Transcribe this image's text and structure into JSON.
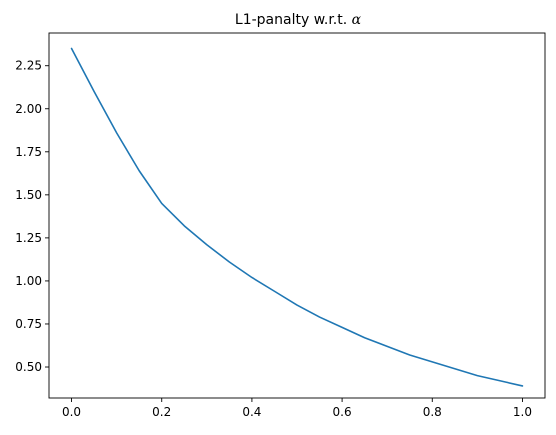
{
  "chart_data": {
    "type": "line",
    "title": "L1-panalty w.r.t. ",
    "title_symbol": "α",
    "xlabel": "",
    "ylabel": "",
    "xlim": [
      -0.05,
      1.05
    ],
    "ylim": [
      0.32,
      2.44
    ],
    "x_ticks": [
      0.0,
      0.2,
      0.4,
      0.6,
      0.8,
      1.0
    ],
    "x_tick_labels": [
      "0.0",
      "0.2",
      "0.4",
      "0.6",
      "0.8",
      "1.0"
    ],
    "y_ticks": [
      0.5,
      0.75,
      1.0,
      1.25,
      1.5,
      1.75,
      2.0,
      2.25
    ],
    "y_tick_labels": [
      "0.50",
      "0.75",
      "1.00",
      "1.25",
      "1.50",
      "1.75",
      "2.00",
      "2.25"
    ],
    "grid": false,
    "series": [
      {
        "color": "#1f77b4",
        "x": [
          0.0,
          0.05,
          0.1,
          0.15,
          0.2,
          0.25,
          0.3,
          0.35,
          0.4,
          0.45,
          0.5,
          0.55,
          0.6,
          0.65,
          0.7,
          0.75,
          0.8,
          0.85,
          0.9,
          0.95,
          1.0
        ],
        "y": [
          2.35,
          2.1,
          1.86,
          1.64,
          1.45,
          1.32,
          1.21,
          1.11,
          1.02,
          0.94,
          0.86,
          0.79,
          0.73,
          0.67,
          0.62,
          0.57,
          0.53,
          0.49,
          0.45,
          0.42,
          0.39
        ]
      }
    ]
  }
}
